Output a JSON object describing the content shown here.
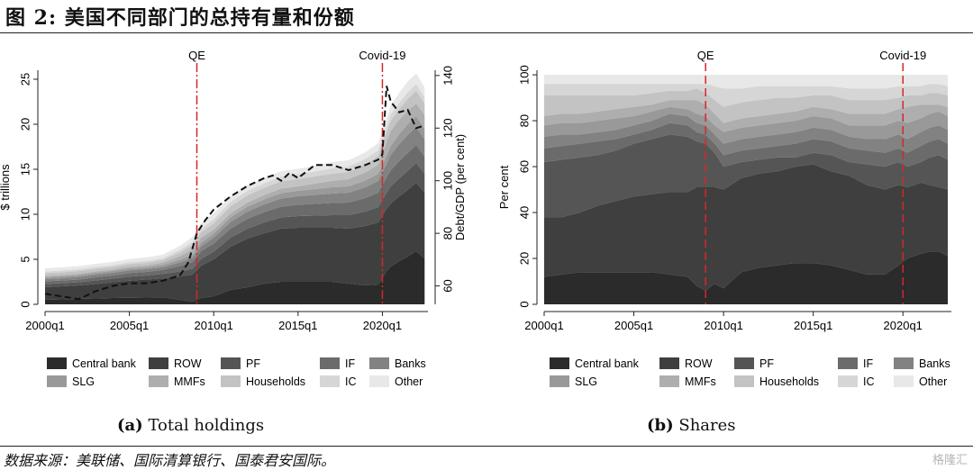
{
  "figure_title": "图 2:  美国不同部门的总持有量和份额",
  "source": "数据来源：美联储、国际清算银行、国泰君安国际。",
  "watermark": "格隆汇",
  "colors": {
    "Central bank": "#2b2b2b",
    "ROW": "#3f3f3f",
    "PF": "#555555",
    "IF": "#6b6b6b",
    "Banks": "#828282",
    "SLG": "#999999",
    "MMFs": "#aeaeae",
    "Households": "#c3c3c3",
    "IC": "#d6d6d6",
    "Other": "#e8e8e8",
    "event_line": "#d62728",
    "debt_line": "#111111"
  },
  "legend": [
    "Central bank",
    "ROW",
    "PF",
    "IF",
    "Banks",
    "SLG",
    "MMFs",
    "Households",
    "IC",
    "Other"
  ],
  "chart_data": [
    {
      "type": "area",
      "panel_label": "(a)",
      "caption": "Total holdings",
      "ylabel": "$ trillions",
      "y2label": "Debt/GDP (per cent)",
      "x": [
        2000,
        2001,
        2002,
        2003,
        2004,
        2005,
        2006,
        2007,
        2008,
        2008.75,
        2009.25,
        2010,
        2011,
        2012,
        2013,
        2014,
        2015,
        2016,
        2017,
        2018,
        2019,
        2019.75,
        2020.25,
        2020.5,
        2021,
        2021.5,
        2022,
        2022.5
      ],
      "xlim": [
        2000,
        2022.7
      ],
      "xticks": [
        2000,
        2005,
        2010,
        2015,
        2020
      ],
      "xtick_labels": [
        "2000q1",
        "2005q1",
        "2010q1",
        "2015q1",
        "2020q1"
      ],
      "ylim": [
        0,
        26
      ],
      "yticks": [
        0,
        5,
        10,
        15,
        20,
        25
      ],
      "y2lim": [
        53,
        142
      ],
      "y2ticks": [
        60,
        80,
        100,
        120,
        140
      ],
      "series": [
        {
          "name": "Central bank",
          "values": [
            0.5,
            0.55,
            0.6,
            0.65,
            0.7,
            0.72,
            0.75,
            0.78,
            0.5,
            0.3,
            0.7,
            0.9,
            1.6,
            1.9,
            2.3,
            2.5,
            2.5,
            2.5,
            2.5,
            2.3,
            2.1,
            2.2,
            3.7,
            4.2,
            4.8,
            5.3,
            5.9,
            5.1
          ]
        },
        {
          "name": "ROW",
          "values": [
            1.4,
            1.45,
            1.5,
            1.6,
            1.75,
            1.9,
            2.0,
            2.1,
            2.6,
            3.0,
            3.6,
            4.1,
            4.8,
            5.4,
            5.6,
            5.9,
            6.0,
            6.0,
            6.0,
            6.1,
            6.6,
            6.9,
            6.9,
            7.0,
            7.2,
            7.4,
            7.6,
            7.3
          ]
        },
        {
          "name": "PF",
          "values": [
            0.35,
            0.35,
            0.35,
            0.4,
            0.4,
            0.45,
            0.45,
            0.5,
            0.55,
            0.65,
            0.75,
            0.85,
            1.0,
            1.1,
            1.2,
            1.25,
            1.3,
            1.35,
            1.4,
            1.5,
            1.6,
            1.7,
            1.8,
            1.9,
            2.0,
            2.1,
            2.2,
            2.1
          ]
        },
        {
          "name": "IF",
          "values": [
            0.3,
            0.3,
            0.3,
            0.35,
            0.35,
            0.4,
            0.4,
            0.45,
            0.6,
            0.75,
            0.85,
            0.9,
            1.0,
            1.1,
            1.15,
            1.2,
            1.25,
            1.3,
            1.35,
            1.4,
            1.5,
            1.6,
            1.7,
            1.8,
            1.9,
            2.0,
            2.0,
            1.9
          ]
        },
        {
          "name": "Banks",
          "values": [
            0.25,
            0.25,
            0.3,
            0.3,
            0.3,
            0.3,
            0.3,
            0.3,
            0.4,
            0.45,
            0.55,
            0.65,
            0.75,
            0.8,
            0.85,
            0.9,
            0.95,
            1.0,
            1.05,
            1.1,
            1.2,
            1.3,
            1.5,
            1.7,
            1.9,
            2.0,
            2.0,
            1.9
          ]
        },
        {
          "name": "SLG",
          "values": [
            0.2,
            0.2,
            0.2,
            0.2,
            0.2,
            0.2,
            0.2,
            0.25,
            0.3,
            0.35,
            0.4,
            0.45,
            0.5,
            0.55,
            0.55,
            0.6,
            0.6,
            0.65,
            0.7,
            0.7,
            0.75,
            0.8,
            0.9,
            1.0,
            1.1,
            1.2,
            1.2,
            1.2
          ]
        },
        {
          "name": "MMFs",
          "values": [
            0.15,
            0.15,
            0.15,
            0.15,
            0.15,
            0.2,
            0.2,
            0.25,
            0.4,
            0.6,
            0.55,
            0.45,
            0.45,
            0.45,
            0.5,
            0.5,
            0.5,
            0.6,
            0.7,
            0.8,
            0.9,
            1.0,
            1.5,
            1.7,
            1.6,
            1.5,
            1.4,
            1.5
          ]
        },
        {
          "name": "Households",
          "values": [
            0.3,
            0.3,
            0.3,
            0.3,
            0.3,
            0.3,
            0.3,
            0.3,
            0.4,
            0.5,
            0.6,
            0.7,
            0.8,
            0.8,
            0.8,
            0.8,
            0.8,
            0.8,
            0.8,
            0.8,
            0.9,
            1.0,
            1.1,
            1.1,
            1.2,
            1.3,
            1.4,
            1.3
          ]
        },
        {
          "name": "IC",
          "values": [
            0.2,
            0.2,
            0.2,
            0.2,
            0.2,
            0.2,
            0.2,
            0.2,
            0.3,
            0.35,
            0.4,
            0.45,
            0.5,
            0.5,
            0.5,
            0.55,
            0.55,
            0.55,
            0.6,
            0.6,
            0.6,
            0.6,
            0.7,
            0.7,
            0.7,
            0.75,
            0.75,
            0.7
          ]
        },
        {
          "name": "Other",
          "values": [
            0.35,
            0.35,
            0.35,
            0.35,
            0.35,
            0.35,
            0.4,
            0.4,
            0.45,
            0.55,
            0.6,
            0.65,
            0.6,
            0.6,
            0.6,
            0.6,
            0.6,
            0.65,
            0.7,
            0.7,
            0.75,
            0.8,
            0.9,
            1.0,
            1.1,
            1.2,
            1.2,
            1.1
          ]
        }
      ],
      "debt_gdp": {
        "x": [
          2000,
          2001,
          2002,
          2003,
          2004,
          2005,
          2006,
          2007,
          2008,
          2008.5,
          2009,
          2009.5,
          2010,
          2011,
          2012,
          2013,
          2013.5,
          2014,
          2014.5,
          2015,
          2016,
          2017,
          2018,
          2019,
          2019.75,
          2020,
          2020.25,
          2020.5,
          2021,
          2021.5,
          2022,
          2022.5
        ],
        "values": [
          57,
          56,
          55,
          58,
          60,
          61,
          61,
          62,
          64,
          69,
          80,
          85,
          89,
          94,
          98,
          101,
          102,
          100,
          103,
          101,
          106,
          106,
          104,
          106,
          108,
          110,
          136,
          130,
          126,
          127,
          120,
          121
        ]
      },
      "events": [
        {
          "x": 2009,
          "label": "QE"
        },
        {
          "x": 2020,
          "label": "Covid-19"
        }
      ]
    },
    {
      "type": "area",
      "panel_label": "(b)",
      "caption": "Shares",
      "ylabel": "Per cent",
      "x": [
        2000,
        2001,
        2002,
        2003,
        2004,
        2005,
        2006,
        2007,
        2008,
        2008.5,
        2009,
        2009.5,
        2010,
        2011,
        2012,
        2013,
        2014,
        2015,
        2016,
        2017,
        2018,
        2019,
        2019.75,
        2020.25,
        2021,
        2021.5,
        2022,
        2022.5
      ],
      "xlim": [
        2000,
        2022.7
      ],
      "xticks": [
        2000,
        2005,
        2010,
        2015,
        2020
      ],
      "xtick_labels": [
        "2000q1",
        "2005q1",
        "2010q1",
        "2015q1",
        "2020q1"
      ],
      "ylim": [
        0,
        102
      ],
      "yticks": [
        0,
        20,
        40,
        60,
        80,
        100
      ],
      "cumulative": {
        "Central bank": [
          12,
          13,
          14,
          14,
          14,
          14,
          14,
          13,
          12,
          8,
          6,
          9,
          7,
          14,
          16,
          17,
          18,
          18,
          17,
          15,
          13,
          13,
          17,
          20,
          22,
          23,
          23,
          21
        ],
        "ROW": [
          38,
          38,
          40,
          43,
          45,
          47,
          48,
          49,
          49,
          51,
          51,
          51,
          50,
          55,
          57,
          58,
          60,
          61,
          58,
          56,
          52,
          50,
          52,
          51,
          53,
          52,
          51,
          50
        ],
        "PF": [
          62,
          63,
          64,
          65,
          67,
          70,
          72,
          74,
          73,
          71,
          70,
          66,
          60,
          62,
          63,
          64,
          64,
          66,
          65,
          62,
          61,
          60,
          62,
          60,
          62,
          64,
          65,
          63
        ],
        "IF": [
          68,
          69,
          70,
          71,
          72,
          74,
          76,
          79,
          78,
          75,
          74,
          70,
          65,
          67,
          68,
          69,
          70,
          72,
          71,
          68,
          67,
          66,
          68,
          66,
          69,
          71,
          72,
          70
        ],
        "Banks": [
          73,
          74,
          74,
          75,
          76,
          78,
          80,
          83,
          82,
          79,
          78,
          74,
          70,
          72,
          73,
          74,
          75,
          77,
          76,
          73,
          72,
          72,
          74,
          72,
          75,
          77,
          78,
          76
        ],
        "SLG": [
          78,
          79,
          79,
          80,
          81,
          82,
          84,
          86,
          85,
          83,
          82,
          78,
          75,
          77,
          78,
          79,
          80,
          82,
          81,
          78,
          78,
          78,
          80,
          79,
          81,
          83,
          84,
          82
        ],
        "MMFs": [
          82,
          83,
          83,
          84,
          85,
          86,
          87,
          89,
          89,
          89,
          87,
          83,
          79,
          81,
          82,
          83,
          84,
          86,
          85,
          83,
          83,
          83,
          85,
          86,
          87,
          87,
          87,
          86
        ],
        "Households": [
          91,
          91,
          91,
          91,
          91,
          91,
          92,
          93,
          93,
          94,
          92,
          89,
          86,
          88,
          89,
          90,
          90,
          91,
          91,
          89,
          89,
          89,
          90,
          91,
          91,
          92,
          92,
          91
        ],
        "IC": [
          96,
          96,
          96,
          96,
          96,
          96,
          96,
          96,
          96,
          96,
          96,
          95,
          94,
          94,
          95,
          95,
          95,
          95,
          95,
          94,
          94,
          94,
          95,
          95,
          95,
          96,
          96,
          95
        ],
        "Other": [
          100,
          100,
          100,
          100,
          100,
          100,
          100,
          100,
          100,
          100,
          100,
          100,
          100,
          100,
          100,
          100,
          100,
          100,
          100,
          100,
          100,
          100,
          100,
          100,
          100,
          100,
          100,
          100
        ]
      },
      "events": [
        {
          "x": 2009,
          "label": "QE"
        },
        {
          "x": 2020,
          "label": "Covid-19"
        }
      ]
    }
  ]
}
